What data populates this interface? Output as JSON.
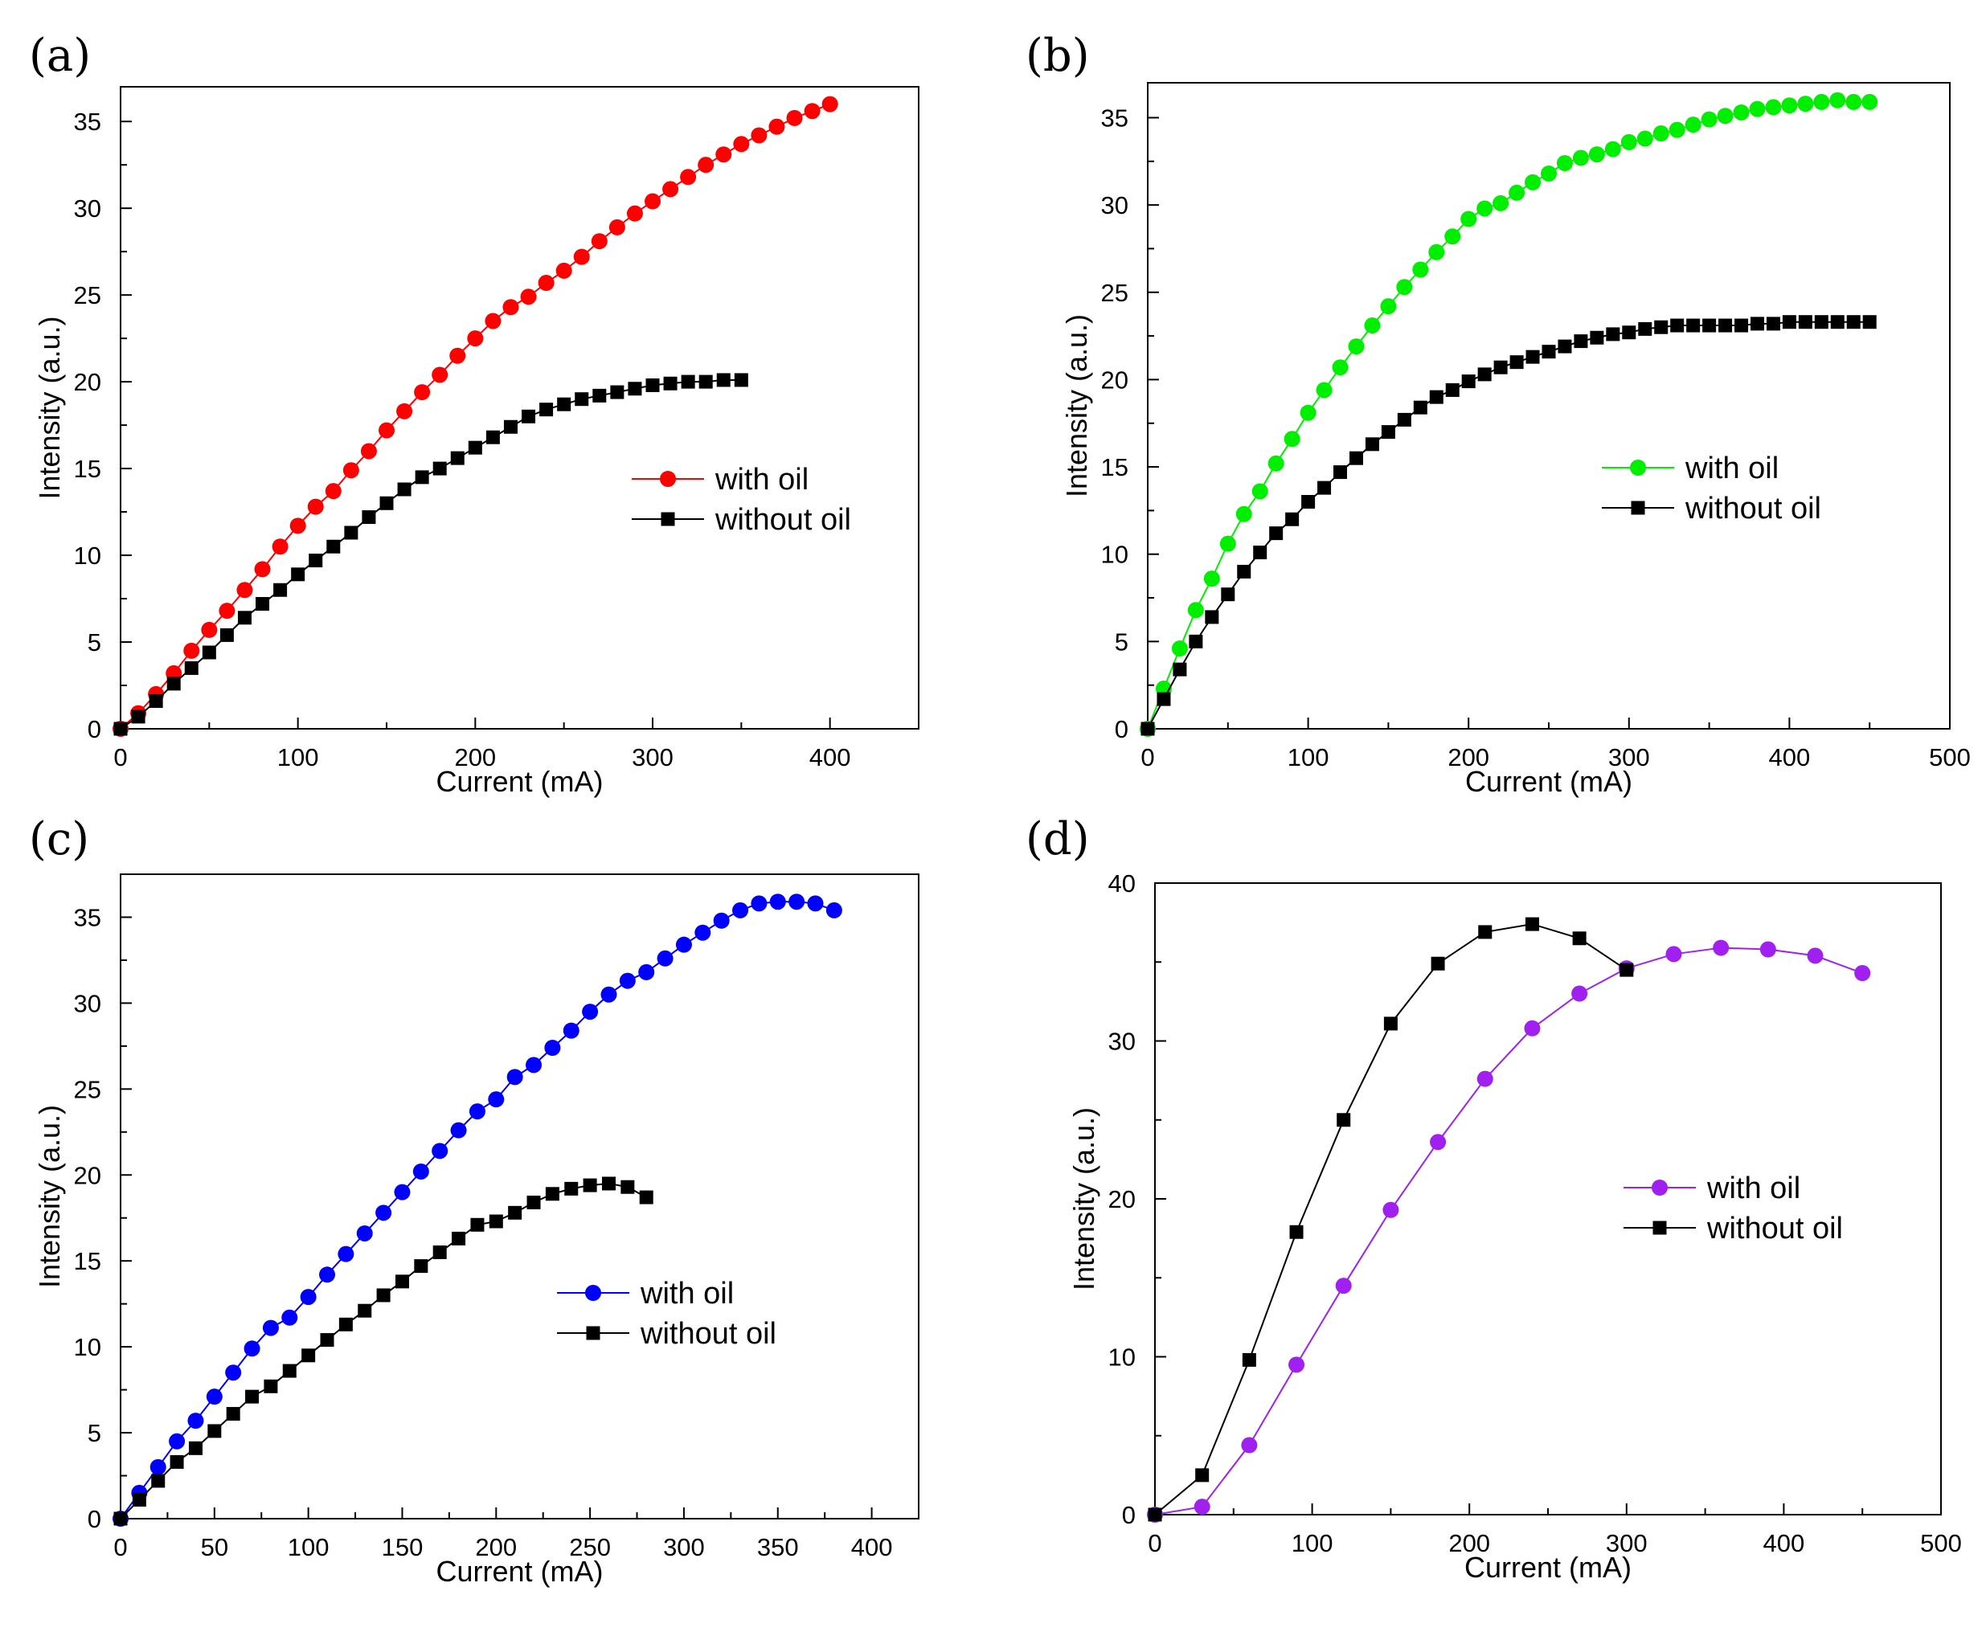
{
  "chart_data": [
    {
      "type": "line",
      "panel_label": "(a)",
      "xlabel": "Current (mA)",
      "ylabel": "Intensity (a.u.)",
      "xlim": [
        0,
        450
      ],
      "ylim": [
        0,
        37
      ],
      "xticks": [
        0,
        100,
        200,
        300,
        400
      ],
      "yticks": [
        0,
        5,
        10,
        15,
        20,
        25,
        30,
        35
      ],
      "legend_position": "center-right",
      "series": [
        {
          "name": "with oil",
          "color": "#ff0000",
          "marker": "circle",
          "x": [
            0,
            10,
            20,
            30,
            40,
            50,
            60,
            70,
            80,
            90,
            100,
            110,
            120,
            130,
            140,
            150,
            160,
            170,
            180,
            190,
            200,
            210,
            220,
            230,
            240,
            250,
            260,
            270,
            280,
            290,
            300,
            310,
            320,
            330,
            340,
            350,
            360,
            370,
            380,
            390,
            400
          ],
          "values": [
            0,
            0.9,
            2.0,
            3.2,
            4.5,
            5.7,
            6.8,
            8.0,
            9.2,
            10.5,
            11.7,
            12.8,
            13.7,
            14.9,
            16.0,
            17.2,
            18.3,
            19.4,
            20.4,
            21.5,
            22.5,
            23.5,
            24.3,
            24.9,
            25.7,
            26.4,
            27.2,
            28.1,
            28.9,
            29.7,
            30.4,
            31.1,
            31.8,
            32.5,
            33.1,
            33.7,
            34.2,
            34.7,
            35.2,
            35.6,
            36.0
          ]
        },
        {
          "name": "without oil",
          "color": "#000000",
          "marker": "square",
          "x": [
            0,
            10,
            20,
            30,
            40,
            50,
            60,
            70,
            80,
            90,
            100,
            110,
            120,
            130,
            140,
            150,
            160,
            170,
            180,
            190,
            200,
            210,
            220,
            230,
            240,
            250,
            260,
            270,
            280,
            290,
            300,
            310,
            320,
            330,
            340,
            350
          ],
          "values": [
            0,
            0.7,
            1.6,
            2.6,
            3.5,
            4.4,
            5.4,
            6.4,
            7.2,
            8.0,
            8.9,
            9.7,
            10.5,
            11.3,
            12.2,
            13.0,
            13.8,
            14.5,
            15.0,
            15.6,
            16.2,
            16.8,
            17.4,
            18.0,
            18.4,
            18.7,
            19.0,
            19.2,
            19.4,
            19.6,
            19.8,
            19.9,
            20.0,
            20.0,
            20.1,
            20.1
          ]
        }
      ]
    },
    {
      "type": "line",
      "panel_label": "(b)",
      "xlabel": "Current (mA)",
      "ylabel": "Intensity (a.u.)",
      "xlim": [
        0,
        500
      ],
      "ylim": [
        0,
        37
      ],
      "xticks": [
        0,
        100,
        200,
        300,
        400,
        500
      ],
      "yticks": [
        0,
        5,
        10,
        15,
        20,
        25,
        30,
        35
      ],
      "legend_position": "center-right",
      "series": [
        {
          "name": "with oil",
          "color": "#00ee00",
          "marker": "circle",
          "x": [
            0,
            10,
            20,
            30,
            40,
            50,
            60,
            70,
            80,
            90,
            100,
            110,
            120,
            130,
            140,
            150,
            160,
            170,
            180,
            190,
            200,
            210,
            220,
            230,
            240,
            250,
            260,
            270,
            280,
            290,
            300,
            310,
            320,
            330,
            340,
            350,
            360,
            370,
            380,
            390,
            400,
            410,
            420,
            430,
            440,
            450
          ],
          "values": [
            0,
            2.3,
            4.6,
            6.8,
            8.6,
            10.6,
            12.3,
            13.6,
            15.2,
            16.6,
            18.1,
            19.4,
            20.7,
            21.9,
            23.1,
            24.2,
            25.3,
            26.3,
            27.3,
            28.2,
            29.2,
            29.8,
            30.1,
            30.7,
            31.3,
            31.8,
            32.4,
            32.7,
            32.9,
            33.2,
            33.6,
            33.8,
            34.1,
            34.3,
            34.6,
            34.9,
            35.1,
            35.3,
            35.5,
            35.6,
            35.7,
            35.8,
            35.9,
            36.0,
            35.9,
            35.9
          ]
        },
        {
          "name": "without oil",
          "color": "#000000",
          "marker": "square",
          "x": [
            0,
            10,
            20,
            30,
            40,
            50,
            60,
            70,
            80,
            90,
            100,
            110,
            120,
            130,
            140,
            150,
            160,
            170,
            180,
            190,
            200,
            210,
            220,
            230,
            240,
            250,
            260,
            270,
            280,
            290,
            300,
            310,
            320,
            330,
            340,
            350,
            360,
            370,
            380,
            390,
            400,
            410,
            420,
            430,
            440,
            450
          ],
          "values": [
            0,
            1.7,
            3.4,
            5.0,
            6.4,
            7.7,
            9.0,
            10.1,
            11.2,
            12.0,
            13.0,
            13.8,
            14.7,
            15.5,
            16.3,
            17.0,
            17.7,
            18.4,
            19.0,
            19.4,
            19.9,
            20.3,
            20.7,
            21.0,
            21.3,
            21.6,
            21.9,
            22.2,
            22.4,
            22.6,
            22.7,
            22.9,
            23.0,
            23.1,
            23.1,
            23.1,
            23.1,
            23.1,
            23.2,
            23.2,
            23.3,
            23.3,
            23.3,
            23.3,
            23.3,
            23.3
          ]
        }
      ]
    },
    {
      "type": "line",
      "panel_label": "(c)",
      "xlabel": "Current (mA)",
      "ylabel": "Intensity (a.u.)",
      "xlim": [
        0,
        425
      ],
      "ylim": [
        0,
        37.5
      ],
      "xticks": [
        0,
        50,
        100,
        150,
        200,
        250,
        300,
        350,
        400
      ],
      "yticks": [
        0,
        5,
        10,
        15,
        20,
        25,
        30,
        35
      ],
      "legend_position": "center-right",
      "series": [
        {
          "name": "with oil",
          "color": "#0000ff",
          "marker": "circle",
          "x": [
            0,
            10,
            20,
            30,
            40,
            50,
            60,
            70,
            80,
            90,
            100,
            110,
            120,
            130,
            140,
            150,
            160,
            170,
            180,
            190,
            200,
            210,
            220,
            230,
            240,
            250,
            260,
            270,
            280,
            290,
            300,
            310,
            320,
            330,
            340,
            350,
            360,
            370,
            380
          ],
          "values": [
            0,
            1.5,
            3.0,
            4.5,
            5.7,
            7.1,
            8.5,
            9.9,
            11.1,
            11.7,
            12.9,
            14.2,
            15.4,
            16.6,
            17.8,
            19.0,
            20.2,
            21.4,
            22.6,
            23.7,
            24.4,
            25.7,
            26.4,
            27.4,
            28.4,
            29.5,
            30.5,
            31.3,
            31.8,
            32.6,
            33.4,
            34.1,
            34.8,
            35.4,
            35.8,
            35.9,
            35.9,
            35.8,
            35.4
          ]
        },
        {
          "name": "without oil",
          "color": "#000000",
          "marker": "square",
          "x": [
            0,
            10,
            20,
            30,
            40,
            50,
            60,
            70,
            80,
            90,
            100,
            110,
            120,
            130,
            140,
            150,
            160,
            170,
            180,
            190,
            200,
            210,
            220,
            230,
            240,
            250,
            260,
            270,
            280
          ],
          "values": [
            0,
            1.1,
            2.2,
            3.3,
            4.1,
            5.1,
            6.1,
            7.1,
            7.7,
            8.6,
            9.5,
            10.4,
            11.3,
            12.1,
            13.0,
            13.8,
            14.7,
            15.5,
            16.3,
            17.1,
            17.3,
            17.8,
            18.4,
            18.9,
            19.2,
            19.4,
            19.5,
            19.3,
            18.7
          ]
        }
      ]
    },
    {
      "type": "line",
      "panel_label": "(d)",
      "xlabel": "Current (mA)",
      "ylabel": "Intensity (a.u.)",
      "xlim": [
        0,
        500
      ],
      "ylim": [
        0,
        40
      ],
      "xticks": [
        0,
        100,
        200,
        300,
        400,
        500
      ],
      "yticks": [
        0,
        10,
        20,
        30,
        40
      ],
      "legend_position": "center-right",
      "series": [
        {
          "name": "with oil",
          "color": "#a020f0",
          "marker": "circle",
          "x": [
            0,
            30,
            60,
            90,
            120,
            150,
            180,
            210,
            240,
            270,
            300,
            330,
            360,
            390,
            420,
            450
          ],
          "values": [
            0,
            0.5,
            4.4,
            9.5,
            14.5,
            19.3,
            23.6,
            27.6,
            30.8,
            33.0,
            34.6,
            35.5,
            35.9,
            35.8,
            35.4,
            34.3
          ]
        },
        {
          "name": "without oil",
          "color": "#000000",
          "marker": "square",
          "x": [
            0,
            30,
            60,
            90,
            120,
            150,
            180,
            210,
            240,
            270,
            300
          ],
          "values": [
            0,
            2.5,
            9.8,
            17.9,
            25.0,
            31.1,
            34.9,
            36.9,
            37.4,
            36.5,
            34.5
          ]
        }
      ]
    }
  ]
}
